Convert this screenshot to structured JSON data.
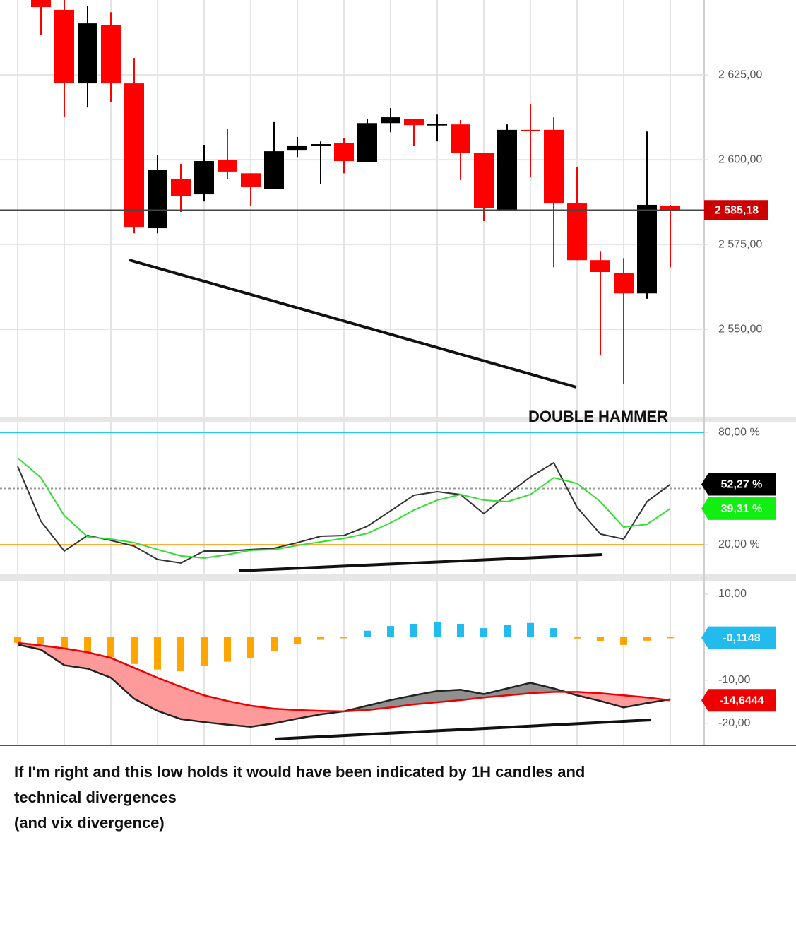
{
  "chart_data": [
    {
      "type": "candlestick",
      "categories": [
        null,
        null,
        null,
        null,
        null,
        null,
        null,
        null,
        null,
        null,
        null,
        null,
        null,
        null,
        null,
        null,
        null,
        null,
        null,
        null,
        null,
        null,
        null,
        null,
        null,
        null,
        null,
        null,
        null
      ],
      "open": [
        null,
        2648,
        2644.2,
        2622.5,
        2639.8,
        2622.5,
        2579.8,
        2594.4,
        2589.8,
        2600,
        2596,
        2591.3,
        2602.7,
        2604.4,
        2605,
        2599.2,
        2610.8,
        2612.1,
        2610.4,
        2610.4,
        2601.9,
        2585.2,
        2608.8,
        2608.8,
        2587.1,
        2570.4,
        2566.7,
        2560.6,
        2586.3
      ],
      "high": [
        null,
        2649,
        2647.1,
        2645.4,
        2643.5,
        2630,
        2601.3,
        2598.8,
        2604.4,
        2609.2,
        2596,
        2611.3,
        2606.7,
        2605.4,
        2606.3,
        2612.1,
        2615.2,
        2612.1,
        2613.3,
        2611.7,
        2601.9,
        2610.4,
        2616.5,
        2612.5,
        2597.9,
        2573.1,
        2571,
        2608.3,
        2586.7
      ],
      "low": [
        null,
        2636.7,
        2612.7,
        2615.4,
        2616.9,
        2578.3,
        2578.3,
        2584.6,
        2587.7,
        2594.4,
        2586.3,
        2591.3,
        2600.8,
        2592.9,
        2596,
        2599.2,
        2608.1,
        2604,
        2605.4,
        2594,
        2581.9,
        2585.2,
        2595,
        2568.3,
        2570.4,
        2542.3,
        2533.8,
        2559,
        2568.3
      ],
      "close": [
        null,
        2645,
        2622.7,
        2640.2,
        2622.5,
        2580,
        2597.1,
        2589.4,
        2599.6,
        2596.5,
        2591.9,
        2602.5,
        2604.2,
        2604.6,
        2599.6,
        2610.8,
        2612.5,
        2610.2,
        2610.5,
        2601.9,
        2585.8,
        2608.8,
        2608.6,
        2587.1,
        2570.4,
        2566.9,
        2560.6,
        2586.7,
        2585.18
      ],
      "up_color": "#000000",
      "down_color": "#ff0000",
      "ylim": [
        2524.2,
        2647.1
      ],
      "yticks": [
        {
          "value": 2625,
          "label": "2 625,00"
        },
        {
          "value": 2600,
          "label": "2 600,00"
        },
        {
          "value": 2575,
          "label": "2 575,00"
        },
        {
          "value": 2550,
          "label": "2 550,00"
        }
      ],
      "grid": true,
      "current": {
        "value": 2585.18,
        "label": "2 585,18",
        "color": "#cc0000"
      },
      "annotation": "DOUBLE HAMMER"
    },
    {
      "type": "line",
      "categories": [
        null,
        null,
        null,
        null,
        null,
        null,
        null,
        null,
        null,
        null,
        null,
        null,
        null,
        null,
        null,
        null,
        null,
        null,
        null,
        null,
        null,
        null,
        null,
        null,
        null,
        null,
        null,
        null,
        null
      ],
      "series": [
        {
          "color": "#333333",
          "values": [
            61.9,
            32.5,
            16.6,
            24.9,
            22.3,
            19.2,
            12.1,
            10.2,
            16.6,
            16.6,
            17.4,
            18.1,
            21.1,
            24.5,
            24.9,
            29.8,
            38.1,
            46.4,
            48.3,
            46.8,
            36.6,
            46.8,
            56.2,
            63.8,
            40,
            25.7,
            23,
            43,
            52.27
          ]
        },
        {
          "color": "#33dd33",
          "values": [
            66.4,
            55.8,
            35.5,
            24.2,
            23,
            21.1,
            17.4,
            14,
            12.8,
            14.7,
            17,
            17.4,
            19.6,
            21.5,
            23.4,
            26,
            31.7,
            38.5,
            43.8,
            46.8,
            43.8,
            43,
            46.8,
            55.8,
            52.8,
            43,
            29.4,
            30.9,
            39.31
          ]
        }
      ],
      "ylim": [
        4.5,
        85.7
      ],
      "yticks": [
        {
          "value": 80,
          "label": "80,00 %"
        },
        {
          "value": 20,
          "label": "20,00 %"
        }
      ],
      "hlines": [
        {
          "value": 80,
          "color": "#22ccee"
        },
        {
          "value": 50,
          "color": "#999999",
          "dashed": true
        },
        {
          "value": 20,
          "color": "#ffaa33"
        }
      ],
      "markers": [
        {
          "value": 52.27,
          "label": "52,27 %",
          "color": "#000000"
        },
        {
          "value": 39.31,
          "label": "39,31 %",
          "color": "#11ee11"
        }
      ]
    },
    {
      "type": "macd",
      "categories": [
        null,
        null,
        null,
        null,
        null,
        null,
        null,
        null,
        null,
        null,
        null,
        null,
        null,
        null,
        null,
        null,
        null,
        null,
        null,
        null,
        null,
        null,
        null,
        null,
        null,
        null,
        null,
        null,
        null
      ],
      "histogram": {
        "values": [
          -1.3,
          -1.6,
          -3,
          -3.8,
          -4.6,
          -6.2,
          -7.5,
          -7.9,
          -6.6,
          -5.7,
          -4.9,
          -3.3,
          -1.6,
          -0.6,
          -0.2,
          1.5,
          2.6,
          3.1,
          3.6,
          3.1,
          2.1,
          2.9,
          3.3,
          2.1,
          -0.3,
          -1,
          -1.8,
          -0.8,
          -0.1148
        ],
        "positive_color": "#22bbee",
        "negative_color": "#ffa500"
      },
      "series": [
        {
          "color": "#222222",
          "values": [
            -1.7,
            -2.9,
            -6.5,
            -7.3,
            -9.4,
            -14.3,
            -17.1,
            -19,
            -19.7,
            -20.3,
            -20.8,
            -20,
            -18.9,
            -17.9,
            -17.2,
            -15.9,
            -14.6,
            -13.5,
            -12.5,
            -12.2,
            -13.2,
            -11.9,
            -10.6,
            -11.9,
            -13.5,
            -14.8,
            -16.3,
            -15.3,
            -14.4
          ]
        },
        {
          "color": "#ee0000",
          "values": [
            -1.3,
            -1.9,
            -2.6,
            -3.5,
            -4.8,
            -7.1,
            -9.4,
            -11.5,
            -13.5,
            -14.8,
            -15.9,
            -16.6,
            -16.9,
            -17.1,
            -17.2,
            -16.9,
            -16.3,
            -15.6,
            -15.1,
            -14.6,
            -14,
            -13.5,
            -13,
            -12.7,
            -12.7,
            -13,
            -13.5,
            -14,
            -14.6444
          ]
        }
      ],
      "fill_below_color": "#ff9a9a",
      "fill_above_color": "#909090",
      "ylim": [
        -25.1,
        13.1
      ],
      "yticks": [
        {
          "value": 10,
          "label": "10,00"
        },
        {
          "value": -10,
          "label": "-10,00"
        },
        {
          "value": -20,
          "label": "-20,00"
        }
      ],
      "markers": [
        {
          "value": -0.1148,
          "label": "-0,1148",
          "color": "#22bbee"
        },
        {
          "value": -14.6444,
          "label": "-14,6444",
          "color": "#ee0000"
        }
      ]
    }
  ],
  "caption": [
    "If I'm right and this low holds it would have been indicated by 1H candles and",
    "technical divergences",
    "(and vix divergence)"
  ]
}
